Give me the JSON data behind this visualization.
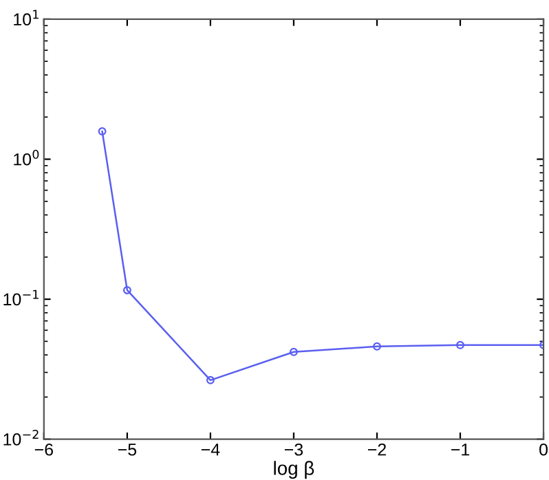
{
  "chart_data": {
    "type": "line",
    "xlabel": "log β",
    "x": [
      -5.3,
      -5,
      -4,
      -3,
      -2,
      -1,
      0
    ],
    "series": [
      {
        "color": "#5a5ff0",
        "values": [
          1.58,
          0.116,
          0.0264,
          0.042,
          0.046,
          0.047,
          0.047
        ]
      }
    ],
    "log": "y",
    "marker": "circle",
    "line_style": "solid",
    "grid": false,
    "legend": false,
    "xlim": [
      -6,
      0
    ],
    "xticks": [
      {
        "value": -6,
        "label": "−6"
      },
      {
        "value": -5,
        "label": "−5"
      },
      {
        "value": -4,
        "label": "−4"
      },
      {
        "value": -3,
        "label": "−3"
      },
      {
        "value": -2,
        "label": "−2"
      },
      {
        "value": -1,
        "label": "−1"
      },
      0
    ],
    "ylim": [
      0.01,
      10
    ],
    "yticks": [
      {
        "value": 0.01,
        "label": "10$^{−2}$"
      },
      {
        "value": 0.1,
        "label": "10$^{−1}$"
      },
      {
        "value": 1,
        "label": "10$^{0}$"
      },
      {
        "value": 10,
        "label": "10$^{1}$"
      }
    ]
  }
}
